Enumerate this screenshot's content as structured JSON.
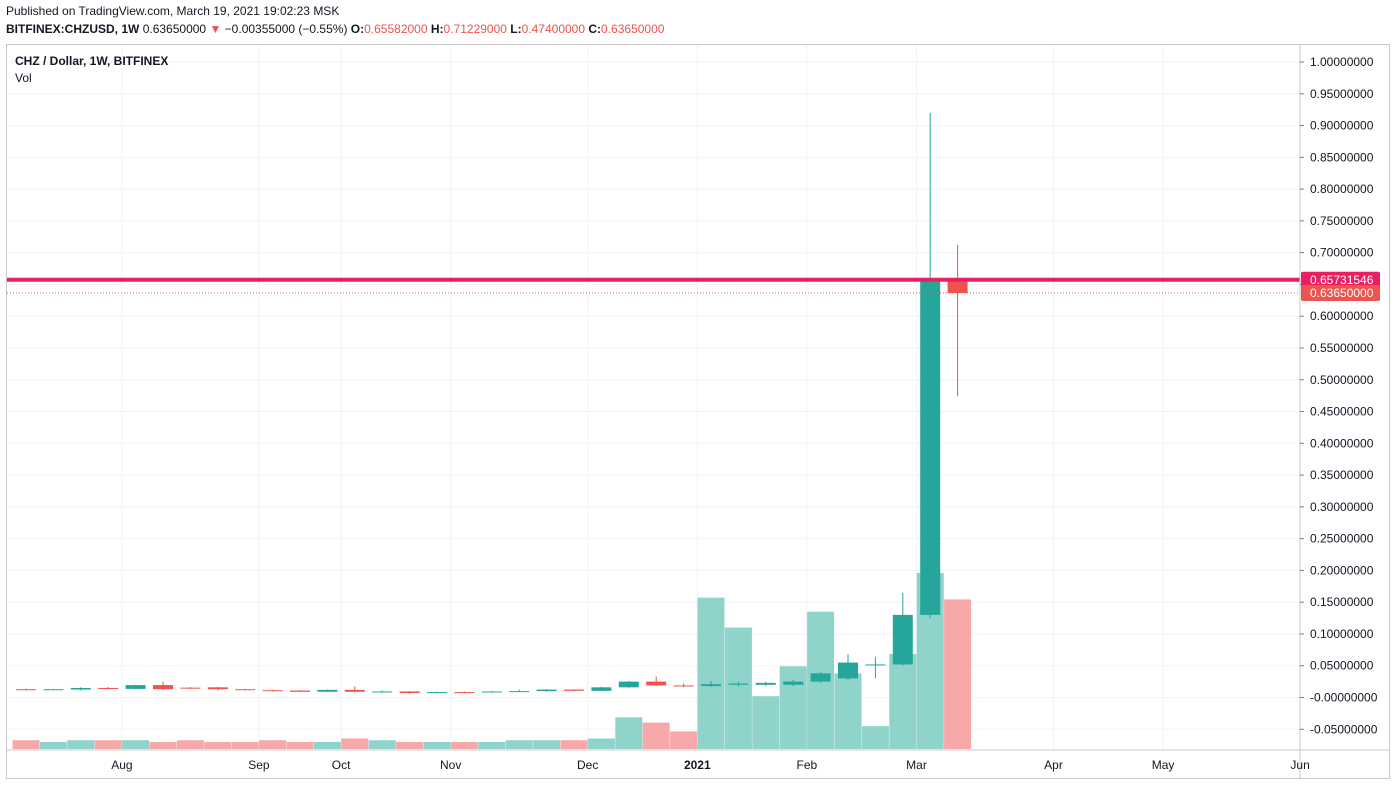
{
  "header": {
    "published": "Published on TradingView.com, March 19, 2021 19:02:23 MSK",
    "symbol": "BITFINEX:CHZUSD, 1W",
    "price": "0.63650000",
    "change_arrow": "▼",
    "change": "−0.00355000 (−0.55%)",
    "open_label": "O:",
    "open": "0.65582000",
    "high_label": "H:",
    "high": "0.71229000",
    "low_label": "L:",
    "low": "0.47400000",
    "close_label": "C:",
    "close": "0.63650000"
  },
  "legend": {
    "title": "CHZ / Dollar, 1W, BITFINEX",
    "volume": "Vol"
  },
  "colors": {
    "up": "#26a69a",
    "down": "#ef5350",
    "hline": "#e91e63",
    "vol_up": "#8fd3ca",
    "vol_down": "#f7a8a8"
  },
  "chart_data": {
    "type": "candlestick",
    "ylim": [
      -0.07,
      1.02
    ],
    "yticks": [
      {
        "v": 1.0,
        "t": "1.00000000"
      },
      {
        "v": 0.95,
        "t": "0.95000000"
      },
      {
        "v": 0.9,
        "t": "0.90000000"
      },
      {
        "v": 0.85,
        "t": "0.85000000"
      },
      {
        "v": 0.8,
        "t": "0.80000000"
      },
      {
        "v": 0.75,
        "t": "0.75000000"
      },
      {
        "v": 0.7,
        "t": "0.70000000"
      },
      {
        "v": 0.65,
        "t": "0.65000000"
      },
      {
        "v": 0.6,
        "t": "0.60000000"
      },
      {
        "v": 0.55,
        "t": "0.55000000"
      },
      {
        "v": 0.5,
        "t": "0.50000000"
      },
      {
        "v": 0.45,
        "t": "0.45000000"
      },
      {
        "v": 0.4,
        "t": "0.40000000"
      },
      {
        "v": 0.35,
        "t": "0.35000000"
      },
      {
        "v": 0.3,
        "t": "0.30000000"
      },
      {
        "v": 0.25,
        "t": "0.25000000"
      },
      {
        "v": 0.2,
        "t": "0.20000000"
      },
      {
        "v": 0.15,
        "t": "0.15000000"
      },
      {
        "v": 0.1,
        "t": "0.10000000"
      },
      {
        "v": 0.05,
        "t": "0.05000000"
      },
      {
        "v": 0.0,
        "t": "-0.00000000"
      },
      {
        "v": -0.05,
        "t": "-0.05000000"
      }
    ],
    "xticks": [
      {
        "i": 3.5,
        "t": "Aug",
        "bold": false
      },
      {
        "i": 8.5,
        "t": "Sep",
        "bold": false
      },
      {
        "i": 11.5,
        "t": "Oct",
        "bold": false
      },
      {
        "i": 15.5,
        "t": "Nov",
        "bold": false
      },
      {
        "i": 20.5,
        "t": "Dec",
        "bold": false
      },
      {
        "i": 24.5,
        "t": "2021",
        "bold": true
      },
      {
        "i": 28.5,
        "t": "Feb",
        "bold": false
      },
      {
        "i": 32.5,
        "t": "Mar",
        "bold": false
      },
      {
        "i": 37.5,
        "t": "Apr",
        "bold": false
      },
      {
        "i": 41.5,
        "t": "May",
        "bold": false
      },
      {
        "i": 46.5,
        "t": "Jun",
        "bold": false
      }
    ],
    "candles": [
      {
        "o": 0.013,
        "h": 0.014,
        "l": 0.0115,
        "c": 0.0125
      },
      {
        "o": 0.0125,
        "h": 0.0135,
        "l": 0.0115,
        "c": 0.013
      },
      {
        "o": 0.0125,
        "h": 0.016,
        "l": 0.011,
        "c": 0.015
      },
      {
        "o": 0.015,
        "h": 0.0165,
        "l": 0.013,
        "c": 0.0135
      },
      {
        "o": 0.0135,
        "h": 0.02,
        "l": 0.013,
        "c": 0.0195
      },
      {
        "o": 0.0195,
        "h": 0.025,
        "l": 0.012,
        "c": 0.013
      },
      {
        "o": 0.0155,
        "h": 0.0165,
        "l": 0.013,
        "c": 0.014
      },
      {
        "o": 0.016,
        "h": 0.017,
        "l": 0.011,
        "c": 0.013
      },
      {
        "o": 0.013,
        "h": 0.0135,
        "l": 0.011,
        "c": 0.0115
      },
      {
        "o": 0.0115,
        "h": 0.012,
        "l": 0.0095,
        "c": 0.0105
      },
      {
        "o": 0.011,
        "h": 0.0115,
        "l": 0.0085,
        "c": 0.009
      },
      {
        "o": 0.009,
        "h": 0.0125,
        "l": 0.0085,
        "c": 0.012
      },
      {
        "o": 0.012,
        "h": 0.0175,
        "l": 0.008,
        "c": 0.009
      },
      {
        "o": 0.009,
        "h": 0.011,
        "l": 0.0075,
        "c": 0.0095
      },
      {
        "o": 0.0095,
        "h": 0.01,
        "l": 0.006,
        "c": 0.007
      },
      {
        "o": 0.007,
        "h": 0.009,
        "l": 0.0065,
        "c": 0.0085
      },
      {
        "o": 0.0085,
        "h": 0.0095,
        "l": 0.0075,
        "c": 0.008
      },
      {
        "o": 0.008,
        "h": 0.0105,
        "l": 0.0075,
        "c": 0.0095
      },
      {
        "o": 0.0095,
        "h": 0.0125,
        "l": 0.0085,
        "c": 0.01
      },
      {
        "o": 0.01,
        "h": 0.013,
        "l": 0.009,
        "c": 0.0125
      },
      {
        "o": 0.0125,
        "h": 0.013,
        "l": 0.01,
        "c": 0.0105
      },
      {
        "o": 0.0105,
        "h": 0.017,
        "l": 0.01,
        "c": 0.016
      },
      {
        "o": 0.016,
        "h": 0.026,
        "l": 0.0155,
        "c": 0.025
      },
      {
        "o": 0.025,
        "h": 0.033,
        "l": 0.018,
        "c": 0.019
      },
      {
        "o": 0.019,
        "h": 0.022,
        "l": 0.016,
        "c": 0.018
      },
      {
        "o": 0.018,
        "h": 0.026,
        "l": 0.017,
        "c": 0.021
      },
      {
        "o": 0.02,
        "h": 0.025,
        "l": 0.017,
        "c": 0.022
      },
      {
        "o": 0.02,
        "h": 0.025,
        "l": 0.018,
        "c": 0.023
      },
      {
        "o": 0.02,
        "h": 0.028,
        "l": 0.018,
        "c": 0.025
      },
      {
        "o": 0.025,
        "h": 0.04,
        "l": 0.023,
        "c": 0.038
      },
      {
        "o": 0.03,
        "h": 0.068,
        "l": 0.028,
        "c": 0.055
      },
      {
        "o": 0.052,
        "h": 0.064,
        "l": 0.03,
        "c": 0.052
      },
      {
        "o": 0.052,
        "h": 0.165,
        "l": 0.05,
        "c": 0.13
      },
      {
        "o": 0.13,
        "h": 0.92,
        "l": 0.125,
        "c": 0.656
      },
      {
        "o": 0.6558,
        "h": 0.7123,
        "l": 0.474,
        "c": 0.6365
      }
    ],
    "volumes": [
      0.05,
      0.04,
      0.05,
      0.05,
      0.05,
      0.04,
      0.05,
      0.04,
      0.04,
      0.05,
      0.04,
      0.04,
      0.06,
      0.05,
      0.04,
      0.04,
      0.04,
      0.04,
      0.05,
      0.05,
      0.05,
      0.06,
      0.18,
      0.15,
      0.1,
      0.86,
      0.69,
      0.3,
      0.47,
      0.78,
      0.43,
      0.13,
      0.54,
      1.0,
      0.85
    ],
    "hline": {
      "value": 0.65731546,
      "label": "0.65731546"
    },
    "last_price": {
      "value": 0.6365,
      "label": "0.63650000"
    }
  }
}
